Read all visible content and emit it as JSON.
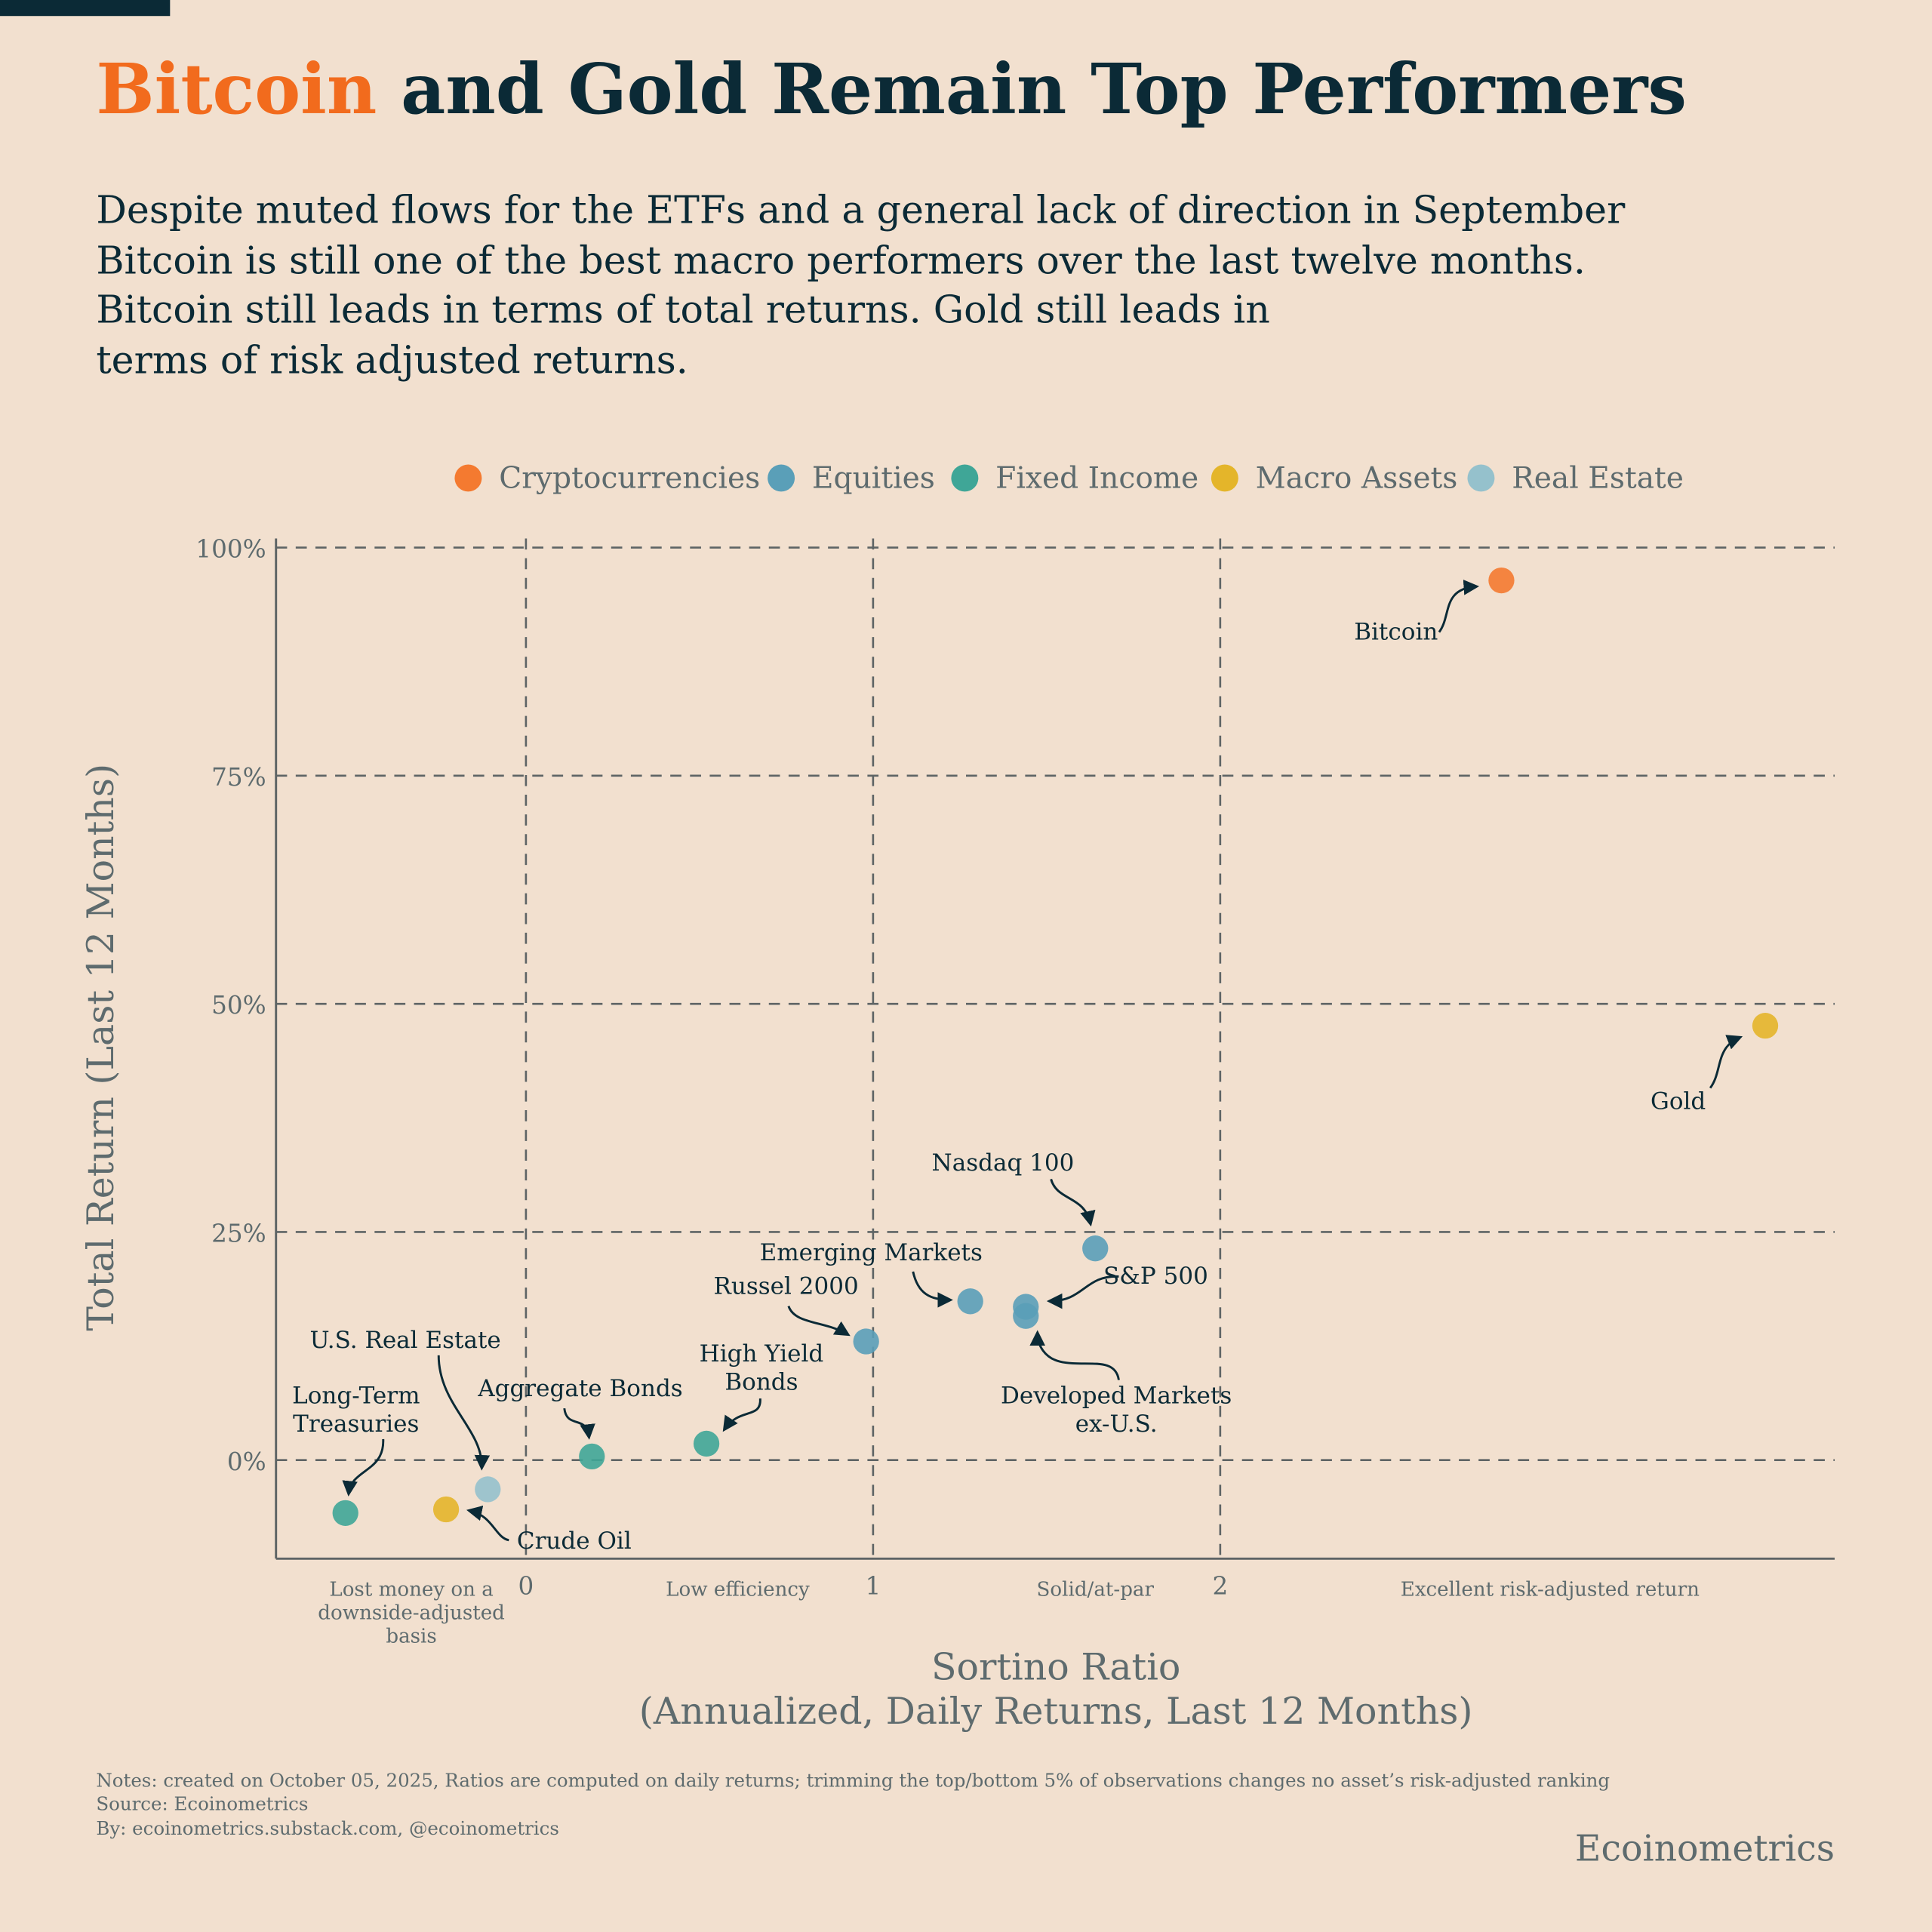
{
  "header": {
    "title_highlight": "Bitcoin",
    "title_rest": " and Gold Remain Top Performers",
    "subtitle_lines": [
      "Despite muted flows for the ETFs and a general lack of direction in September",
      "Bitcoin is still one of the best macro performers over the last twelve months.",
      "Bitcoin still leads in terms of total returns. Gold still leads in",
      "terms of risk adjusted returns."
    ]
  },
  "colors": {
    "background": "#F2E0CF",
    "title_dark": "#0B2A36",
    "title_accent": "#F26B1D",
    "Cryptocurrencies": "#F47A30",
    "Equities": "#5A9FB8",
    "Fixed Income": "#3FA697",
    "Macro Assets": "#E4B52A",
    "Real Estate": "#95C1CC"
  },
  "chart_data": {
    "type": "scatter",
    "xlabel_lines": [
      "Sortino Ratio",
      "(Annualized, Daily Returns, Last 12 Months)"
    ],
    "ylabel": "Total Return (Last 12 Months)",
    "xlim": [
      -0.72,
      3.77
    ],
    "ylim": [
      -10.8,
      101
    ],
    "x_ticks": [
      0,
      1,
      2
    ],
    "x_tick_labels": [
      "0",
      "1",
      "2"
    ],
    "y_ticks": [
      0,
      25,
      50,
      75,
      100
    ],
    "y_tick_labels": [
      "0%",
      "25%",
      "50%",
      "75%",
      "100%"
    ],
    "grid": true,
    "legend_position": "top",
    "legend": [
      "Cryptocurrencies",
      "Equities",
      "Fixed Income",
      "Macro Assets",
      "Real Estate"
    ],
    "region_labels": [
      {
        "x": -0.33,
        "lines": [
          "Lost money on a",
          "downside-adjusted",
          "basis"
        ]
      },
      {
        "x": 0.61,
        "lines": [
          "Low efficiency"
        ]
      },
      {
        "x": 1.64,
        "lines": [
          "Solid/at-par"
        ]
      },
      {
        "x": 2.95,
        "lines": [
          "Excellent risk-adjusted return"
        ]
      }
    ],
    "points": [
      {
        "name": "Bitcoin",
        "label_lines": [
          "Bitcoin"
        ],
        "category": "Cryptocurrencies",
        "x": 2.81,
        "y": 96.4
      },
      {
        "name": "Gold",
        "label_lines": [
          "Gold"
        ],
        "category": "Macro Assets",
        "x": 3.57,
        "y": 47.6
      },
      {
        "name": "Nasdaq 100",
        "label_lines": [
          "Nasdaq 100"
        ],
        "category": "Equities",
        "x": 1.64,
        "y": 23.2
      },
      {
        "name": "S&P 500",
        "label_lines": [
          "S&P 500"
        ],
        "category": "Equities",
        "x": 1.44,
        "y": 16.8
      },
      {
        "name": "Developed Markets ex-U.S.",
        "label_lines": [
          "Developed Markets",
          "ex-U.S."
        ],
        "category": "Equities",
        "x": 1.44,
        "y": 15.8
      },
      {
        "name": "Emerging Markets",
        "label_lines": [
          "Emerging Markets"
        ],
        "category": "Equities",
        "x": 1.28,
        "y": 17.4
      },
      {
        "name": "Russel 2000",
        "label_lines": [
          "Russel 2000"
        ],
        "category": "Equities",
        "x": 0.98,
        "y": 13.0
      },
      {
        "name": "High Yield Bonds",
        "label_lines": [
          "High Yield",
          "Bonds"
        ],
        "category": "Fixed Income",
        "x": 0.52,
        "y": 1.8
      },
      {
        "name": "Aggregate Bonds",
        "label_lines": [
          "Aggregate Bonds"
        ],
        "category": "Fixed Income",
        "x": 0.19,
        "y": 0.4
      },
      {
        "name": "U.S. Real Estate",
        "label_lines": [
          "U.S. Real Estate"
        ],
        "category": "Real Estate",
        "x": -0.11,
        "y": -3.2
      },
      {
        "name": "Crude Oil",
        "label_lines": [
          "Crude Oil"
        ],
        "category": "Macro Assets",
        "x": -0.23,
        "y": -5.4
      },
      {
        "name": "Long-Term Treasuries",
        "label_lines": [
          "Long-Term",
          "Treasuries"
        ],
        "category": "Fixed Income",
        "x": -0.52,
        "y": -5.8
      }
    ]
  },
  "footer": {
    "notes": "Notes: created on October 05, 2025, Ratios are computed on daily returns; trimming the top/bottom 5% of observations changes no asset’s risk-adjusted ranking",
    "source": "Source: Ecoinometrics",
    "by": "By: ecoinometrics.substack.com, @ecoinometrics",
    "brand": "Ecoinometrics"
  }
}
